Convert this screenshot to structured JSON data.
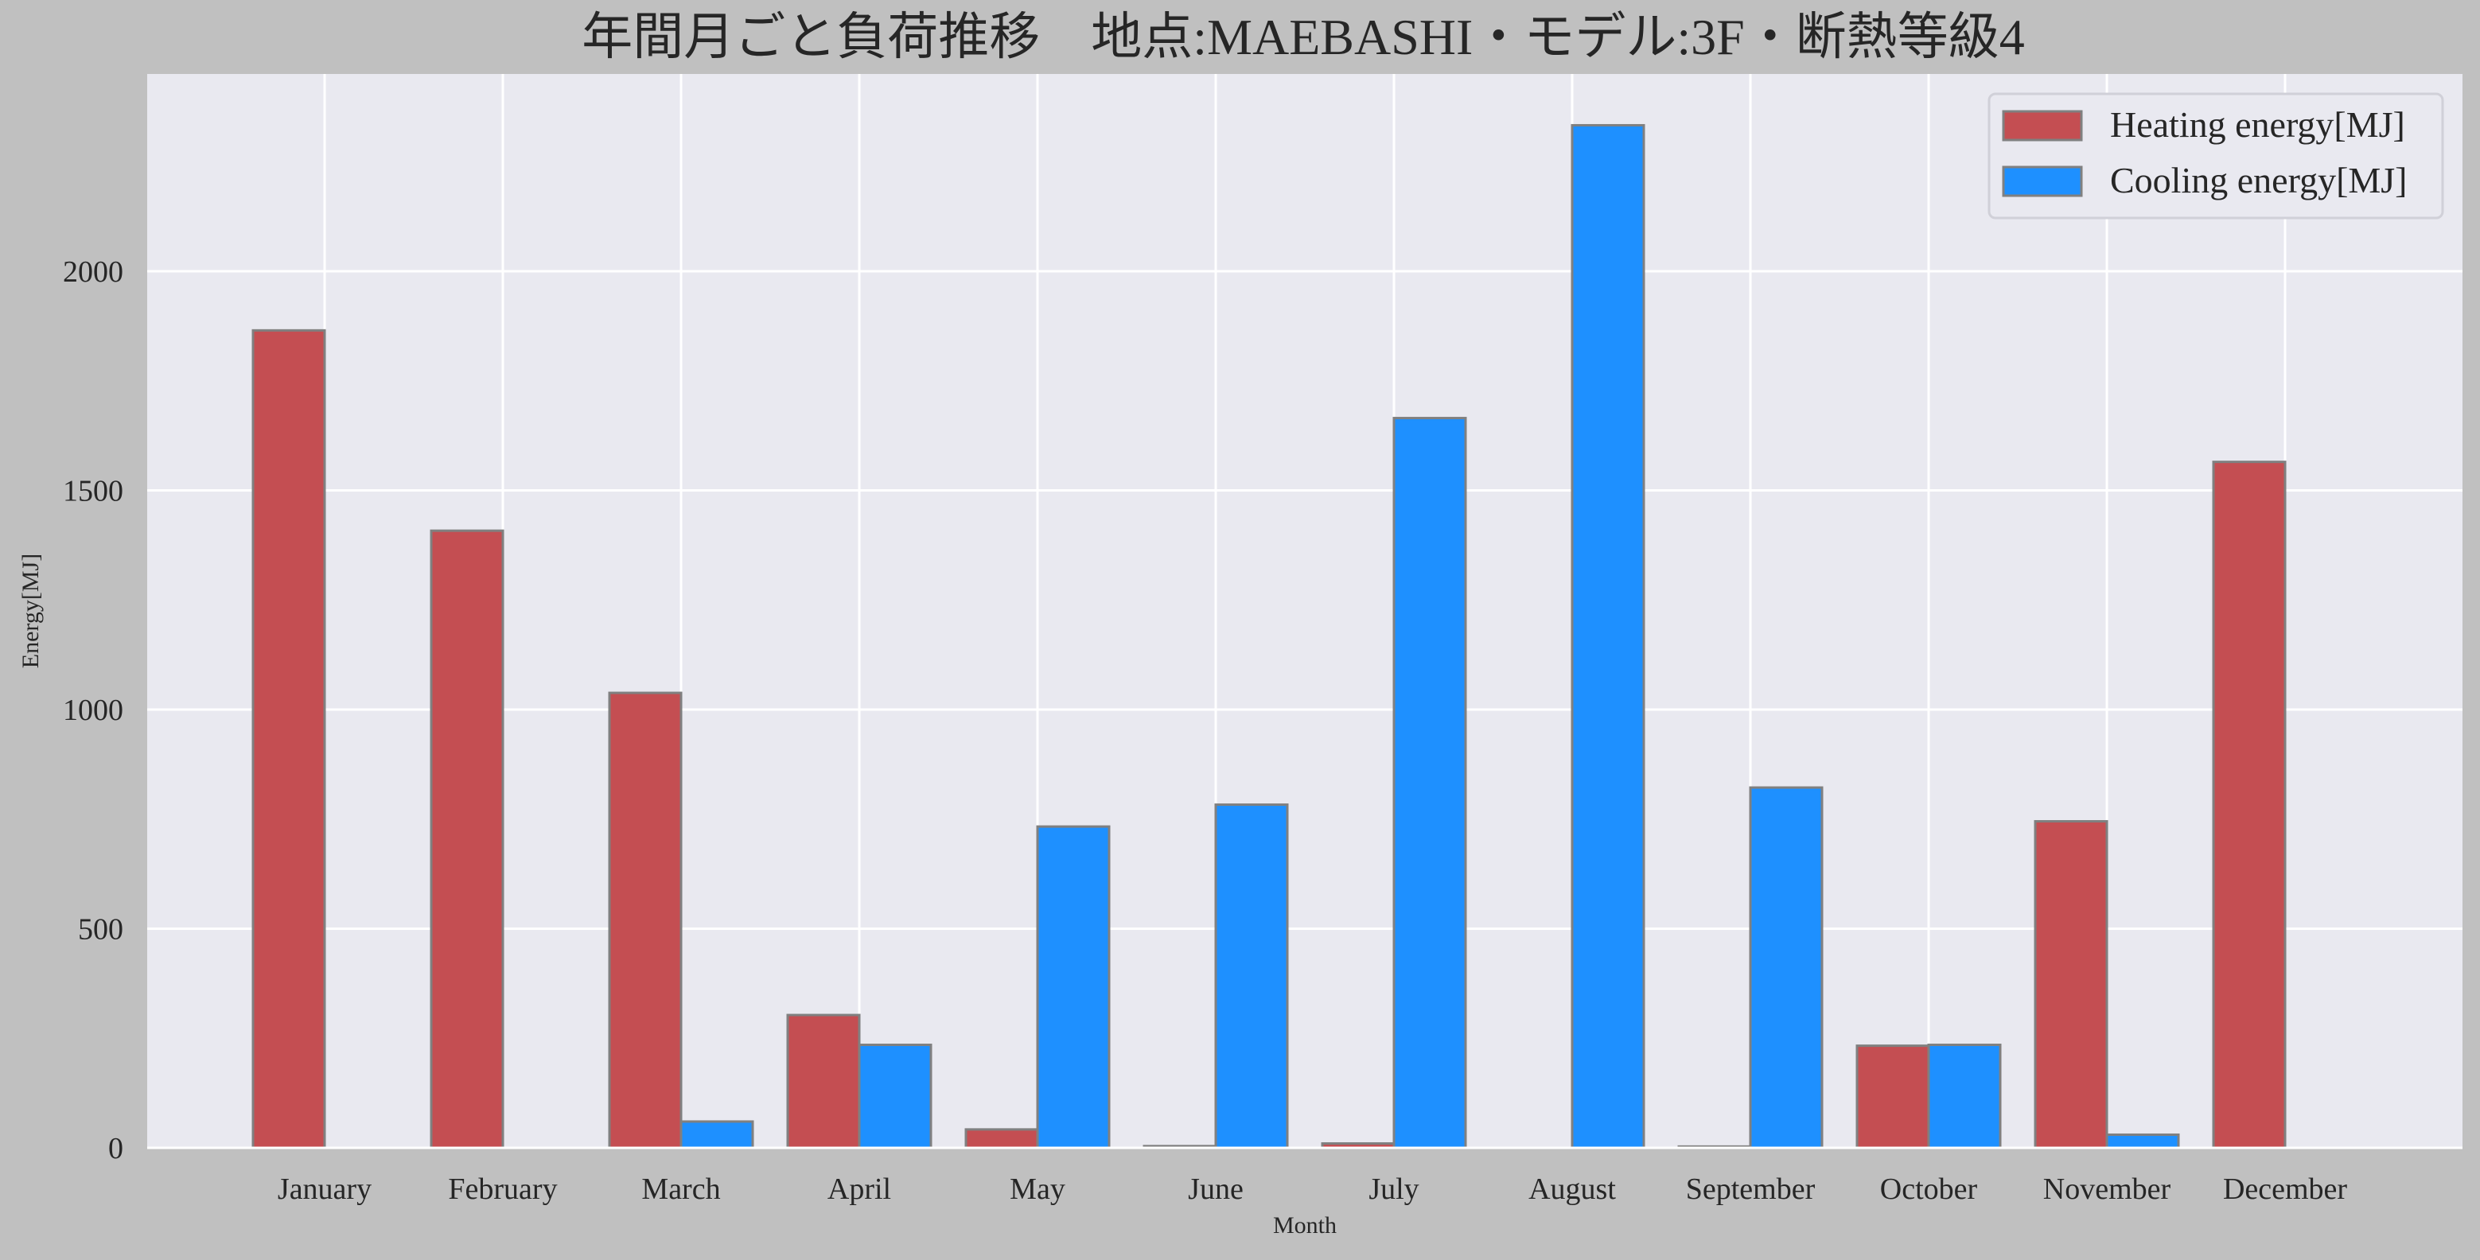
{
  "chart_data": {
    "type": "bar",
    "title": "年間月ごと負荷推移　地点:MAEBASHI・モデル:3F・断熱等級4",
    "xlabel": "Month",
    "ylabel": "Energy[MJ]",
    "ylim": [
      0,
      2450
    ],
    "yticks": [
      0,
      500,
      1000,
      1500,
      2000
    ],
    "grid": true,
    "legend_position": "top-right",
    "categories": [
      "January",
      "February",
      "March",
      "April",
      "May",
      "June",
      "July",
      "August",
      "September",
      "October",
      "November",
      "December"
    ],
    "series": [
      {
        "name": "Heating energy[MJ]",
        "color": "#c44e52",
        "values": [
          1865,
          1408,
          1038,
          303,
          42,
          4,
          10,
          0,
          3,
          233,
          745,
          1565
        ]
      },
      {
        "name": "Cooling energy[MJ]",
        "color": "#1e90ff",
        "values": [
          0,
          0,
          60,
          235,
          733,
          783,
          1665,
          2333,
          822,
          235,
          30,
          0
        ]
      }
    ]
  },
  "colors": {
    "figure_background": "#c0c0c0",
    "plot_background": "#e9e9f0",
    "grid": "#ffffff",
    "bar_edge": "#808080"
  }
}
